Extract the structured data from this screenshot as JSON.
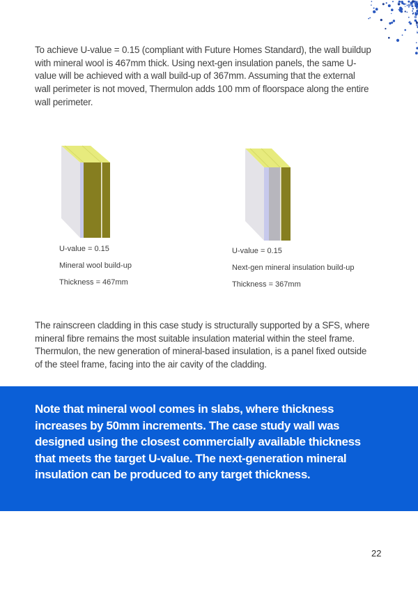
{
  "page": {
    "number": "22",
    "background": "#ffffff"
  },
  "intro_paragraph": "To achieve U-value = 0.15 (compliant with Future Homes Standard), the wall buildup with mineral wool is 467mm thick. Using next-gen insulation panels, the same U-value will be achieved with a wall build-up of 367mm. Assuming that the external wall perimeter is not moved, Thermulon adds 100 mm of floorspace along the entire wall perimeter.",
  "body_paragraph": "The rainscreen cladding in this case study is structurally supported by a SFS, where mineral fibre remains the most suitable insulation material within the steel frame. Thermulon, the new generation of mineral-based insulation, is a panel fixed outside of the steel frame, facing into the air cavity of the cladding.",
  "diagrams": {
    "left": {
      "u_value": "U-value = 0.15",
      "name": "Mineral wool build-up",
      "thickness": "Thickness = 467mm"
    },
    "right": {
      "u_value": "U-value = 0.15",
      "name": "Next-gen mineral insulation build-up",
      "thickness": "Thickness = 367mm"
    }
  },
  "note_box": {
    "text": "Note that mineral wool comes in slabs, where thickness increases by 50mm increments. The case study wall was designed using the closest commercially available thickness that meets the target U-value. The next-generation mineral insulation can be produced to any target thickness.",
    "background": "#0b5fd7",
    "text_color": "#ffffff"
  },
  "palette": {
    "panel_side_gray": "#e4e3e8",
    "panel_membrane_lavender": "#c7c9ec",
    "panel_insulation_olive": "#867e20",
    "panel_top_yellow": "#e7eb7d",
    "panel_top_line": "#d6da67",
    "panel_mid_gray": "#b7b6bd",
    "panel_seam_white": "#f1efdc",
    "text_dark": "#414141",
    "dot_blue": "#2a58bf",
    "dot_navy": "#1a3a8f",
    "dot_light": "#7b97d8"
  }
}
